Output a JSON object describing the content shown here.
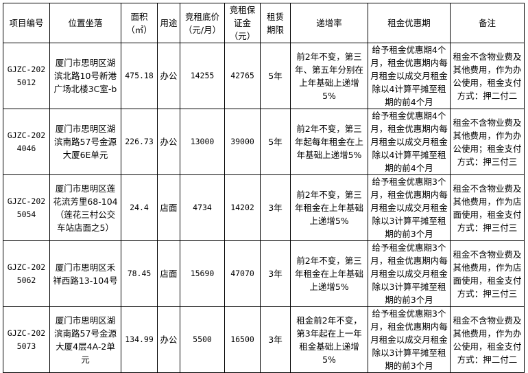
{
  "headers": [
    "项目编号",
    "位置坐落",
    "面积（㎡）",
    "用途",
    "竞租底价（元/月）",
    "竞租保证金（元）",
    "租赁期限",
    "递增率",
    "租金优惠期",
    "备注"
  ],
  "rows": [
    {
      "code": "GJZC-2025012",
      "location": "厦门市思明区湖滨北路10号新港广场北楼3C室-b",
      "area": "475.18",
      "use": "办公",
      "base_price": "14255",
      "deposit": "42765",
      "term": "5年",
      "increase": "前2年不变，第三年、第五年分别在上年基础上递增5%",
      "discount": "给予租金优惠期4个月，租金优惠期内每月租金以成交月租金除以4计算平摊至租期的前4个月",
      "remark": "租金不含物业费及其他费用，作为办公使用，租金支付方式：押二付二"
    },
    {
      "code": "GJZC-2024046",
      "location": "厦门市思明区湖滨南路57号金源大厦6E单元",
      "area": "226.73",
      "use": "办公",
      "base_price": "13000",
      "deposit": "39000",
      "term": "5年",
      "increase": "前2年不变，第三年起每年租金在上年基础上递增5%",
      "discount": "给予租金优惠期4个月，租金优惠期内每月租金以成交月租金除以4计算平摊至租期的前4个月",
      "remark": "租金不含物业费及其他费用，作为办公使用；租金支付方式：押三付三"
    },
    {
      "code": "GJZC-2025054",
      "location": "厦门市思明区莲花流芳里68-104（莲花三村公交车站店面之5）",
      "area": "24.4",
      "use": "店面",
      "base_price": "4734",
      "deposit": "14202",
      "term": "3年",
      "increase": "前2年不变，第三年租金在上年基础上递增5%",
      "discount": "给予租金优惠期3个月，租金优惠期内每月租金以成交月租金除以3计算平摊至租期的前3个月",
      "remark": "租金不含物业费及其他费用，作为店面使用，租金支付方式：押三付三"
    },
    {
      "code": "GJZC-2025062",
      "location": "厦门市思明区禾祥西路13-104号",
      "area": "78.45",
      "use": "店面",
      "base_price": "15690",
      "deposit": "47070",
      "term": "3年",
      "increase": "前2年不变，第三年租金在上年基础上递增5%",
      "discount": "给予租金优惠期3个月，租金优惠期内每月租金以成交月租金除以3计算平摊至租期的前3个月",
      "remark": "租金不含物业费及其他费用，作为店面使用，租金支付方式：押三付三"
    },
    {
      "code": "GJZC-2025073",
      "location": "厦门市思明区湖滨南路57号金源大厦4层4A-2单元",
      "area": "134.99",
      "use": "办公",
      "base_price": "5500",
      "deposit": "16500",
      "term": "3年",
      "increase": "租金前2年不变，第3年起在上一年租金基础上递增5%",
      "discount": "给予租金优惠期3个月，租金优惠期内每月租金以成交月租金除以3计算平摊至租期的前3个月",
      "remark": "租金不含物业费及其他费用，作为办公使用，租金支付方式：押二付二"
    }
  ]
}
